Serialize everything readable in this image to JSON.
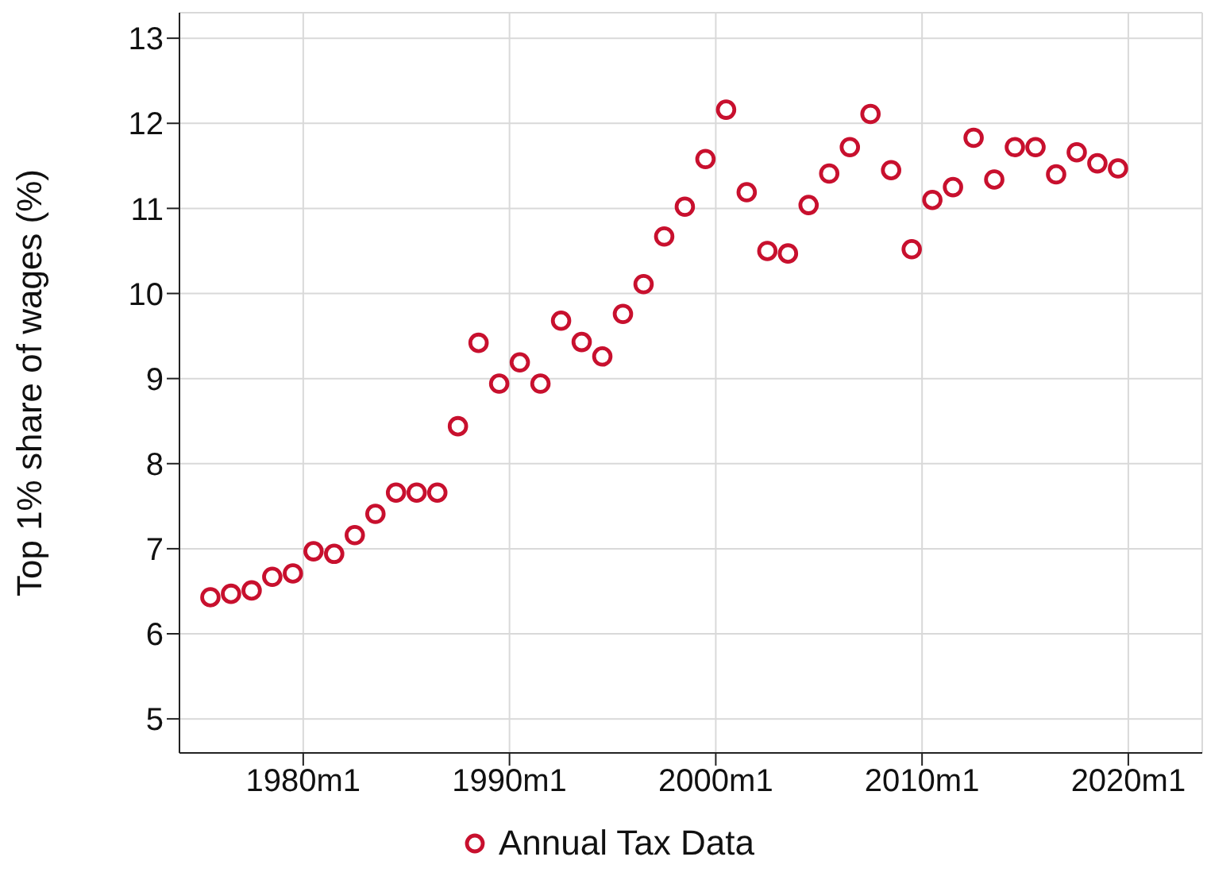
{
  "chart_data": {
    "type": "scatter",
    "ylabel": "Top 1% share of wages (%)",
    "x": [
      "1975-07",
      "1976-07",
      "1977-07",
      "1978-07",
      "1979-07",
      "1980-07",
      "1981-07",
      "1982-07",
      "1983-07",
      "1984-07",
      "1985-07",
      "1986-07",
      "1987-07",
      "1988-07",
      "1989-07",
      "1990-07",
      "1991-07",
      "1992-07",
      "1993-07",
      "1994-07",
      "1995-07",
      "1996-07",
      "1997-07",
      "1998-07",
      "1999-07",
      "2000-07",
      "2001-07",
      "2002-07",
      "2003-07",
      "2004-07",
      "2005-07",
      "2006-07",
      "2007-07",
      "2008-07",
      "2009-07",
      "2010-07",
      "2011-07",
      "2012-07",
      "2013-07",
      "2014-07",
      "2015-07",
      "2016-07",
      "2017-07",
      "2018-07",
      "2019-07"
    ],
    "series": [
      {
        "name": "Annual Tax Data",
        "color": "#c8102e",
        "values": [
          6.43,
          6.47,
          6.51,
          6.67,
          6.71,
          6.97,
          6.94,
          7.16,
          7.41,
          7.66,
          7.66,
          7.66,
          8.44,
          9.42,
          8.94,
          9.19,
          8.94,
          9.68,
          9.43,
          9.26,
          9.76,
          10.11,
          10.67,
          11.02,
          11.58,
          12.16,
          11.19,
          10.5,
          10.47,
          11.04,
          11.41,
          11.72,
          12.11,
          11.45,
          10.52,
          11.1,
          11.25,
          11.83,
          11.34,
          11.72,
          11.72,
          11.4,
          11.66,
          11.53,
          11.47
        ]
      }
    ],
    "xlim": [
      "1974-01",
      "2023-08"
    ],
    "xticks": [
      {
        "value": "1980-01",
        "label": "1980m1"
      },
      {
        "value": "1990-01",
        "label": "1990m1"
      },
      {
        "value": "2000-01",
        "label": "2000m1"
      },
      {
        "value": "2010-01",
        "label": "2010m1"
      },
      {
        "value": "2020-01",
        "label": "2020m1"
      }
    ],
    "ylim": [
      4.6,
      13.3
    ],
    "yticks": [
      5,
      6,
      7,
      8,
      9,
      10,
      11,
      12,
      13
    ],
    "grid": true,
    "legend": "bottom",
    "marker": "circle"
  }
}
